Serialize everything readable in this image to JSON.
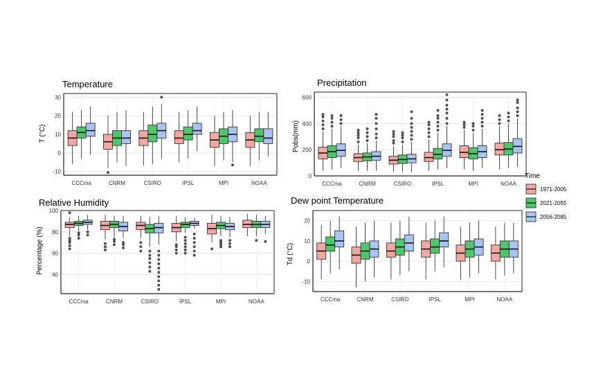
{
  "colors": {
    "1971-2005": "#F4A6A0",
    "2021-2055": "#4CC76A",
    "2056-2085": "#A8C4F2"
  },
  "legend": {
    "title": "Time",
    "items": [
      "1971-2005",
      "2021-2055",
      "2056-2085"
    ]
  },
  "chart_data": [
    {
      "type": "box",
      "title": "Temperature",
      "ylabel": "T (°C)",
      "ylim": [
        -12,
        32
      ],
      "yticks": [
        -10,
        0,
        10,
        20,
        30
      ],
      "categories": [
        "CCCma",
        "CNRM",
        "CSIRO",
        "IPSL",
        "MPI",
        "NOAA"
      ],
      "series": [
        {
          "name": "1971-2005",
          "boxes": [
            {
              "whislo": -6,
              "q1": 4,
              "med": 8,
              "q3": 12,
              "whishi": 22,
              "fliers": []
            },
            {
              "whislo": -8,
              "q1": 2,
              "med": 6,
              "q3": 10,
              "whishi": 20,
              "fliers": [
                -10.5
              ]
            },
            {
              "whislo": -7,
              "q1": 4,
              "med": 8,
              "q3": 12,
              "whishi": 22,
              "fliers": []
            },
            {
              "whislo": -5,
              "q1": 5,
              "med": 8,
              "q3": 12,
              "whishi": 22,
              "fliers": []
            },
            {
              "whislo": -7,
              "q1": 3,
              "med": 7,
              "q3": 11,
              "whishi": 20,
              "fliers": []
            },
            {
              "whislo": -7,
              "q1": 3,
              "med": 7,
              "q3": 11,
              "whishi": 20,
              "fliers": []
            }
          ]
        },
        {
          "name": "2021-2055",
          "boxes": [
            {
              "whislo": -3,
              "q1": 8,
              "med": 11,
              "q3": 14,
              "whishi": 23,
              "fliers": []
            },
            {
              "whislo": -5,
              "q1": 4,
              "med": 8,
              "q3": 12,
              "whishi": 22,
              "fliers": []
            },
            {
              "whislo": -6,
              "q1": 6,
              "med": 10,
              "q3": 15,
              "whishi": 25,
              "fliers": []
            },
            {
              "whislo": -3,
              "q1": 7,
              "med": 10,
              "q3": 14,
              "whishi": 23,
              "fliers": []
            },
            {
              "whislo": -4,
              "q1": 5,
              "med": 9,
              "q3": 13,
              "whishi": 22,
              "fliers": []
            },
            {
              "whislo": -4,
              "q1": 6,
              "med": 9,
              "q3": 13,
              "whishi": 22,
              "fliers": []
            }
          ]
        },
        {
          "name": "2056-2085",
          "boxes": [
            {
              "whislo": -1,
              "q1": 9,
              "med": 12,
              "q3": 16,
              "whishi": 25,
              "fliers": []
            },
            {
              "whislo": -7,
              "q1": 5,
              "med": 8,
              "q3": 12,
              "whishi": 23,
              "fliers": []
            },
            {
              "whislo": -3,
              "q1": 8,
              "med": 12,
              "q3": 16,
              "whishi": 26,
              "fliers": [
                30
              ]
            },
            {
              "whislo": 1,
              "q1": 10,
              "med": 12,
              "q3": 16,
              "whishi": 25,
              "fliers": []
            },
            {
              "whislo": -5,
              "q1": 6,
              "med": 10,
              "q3": 14,
              "whishi": 23,
              "fliers": [
                -6.5
              ]
            },
            {
              "whislo": -2,
              "q1": 5,
              "med": 8,
              "q3": 13,
              "whishi": 22,
              "fliers": []
            }
          ]
        }
      ]
    },
    {
      "type": "box",
      "title": "Precipitation",
      "ylabel": "Pobs(mm)",
      "ylim": [
        0,
        640
      ],
      "yticks": [
        0,
        200,
        400,
        600
      ],
      "categories": [
        "CCCma",
        "CNRM",
        "CSIRO",
        "IPSL",
        "MPI",
        "NOAA"
      ],
      "series": [
        {
          "name": "1971-2005",
          "boxes": [
            {
              "whislo": 40,
              "q1": 130,
              "med": 175,
              "q3": 220,
              "whishi": 340,
              "fliers": [
                360,
                390,
                420,
                450,
                470
              ]
            },
            {
              "whislo": 40,
              "q1": 110,
              "med": 140,
              "q3": 170,
              "whishi": 240,
              "fliers": [
                260,
                290,
                310,
                330,
                350
              ]
            },
            {
              "whislo": 30,
              "q1": 90,
              "med": 120,
              "q3": 150,
              "whishi": 230,
              "fliers": [
                250,
                270,
                300,
                320,
                340
              ]
            },
            {
              "whislo": 40,
              "q1": 110,
              "med": 140,
              "q3": 180,
              "whishi": 280,
              "fliers": [
                300,
                330,
                360,
                390,
                410
              ]
            },
            {
              "whislo": 50,
              "q1": 140,
              "med": 180,
              "q3": 230,
              "whishi": 350,
              "fliers": [
                370,
                390,
                410
              ]
            },
            {
              "whislo": 50,
              "q1": 160,
              "med": 200,
              "q3": 250,
              "whishi": 380,
              "fliers": [
                400,
                430,
                460
              ]
            }
          ]
        },
        {
          "name": "2021-2055",
          "boxes": [
            {
              "whislo": 50,
              "q1": 140,
              "med": 185,
              "q3": 230,
              "whishi": 360,
              "fliers": [
                380,
                410,
                440,
                460
              ]
            },
            {
              "whislo": 40,
              "q1": 115,
              "med": 145,
              "q3": 175,
              "whishi": 250,
              "fliers": [
                270,
                300,
                330,
                360
              ]
            },
            {
              "whislo": 30,
              "q1": 95,
              "med": 125,
              "q3": 160,
              "whishi": 240,
              "fliers": [
                260,
                290,
                310,
                330
              ]
            },
            {
              "whislo": 50,
              "q1": 130,
              "med": 165,
              "q3": 210,
              "whishi": 330,
              "fliers": [
                350,
                380,
                410,
                440,
                460,
                500
              ]
            },
            {
              "whislo": 40,
              "q1": 130,
              "med": 170,
              "q3": 215,
              "whishi": 330,
              "fliers": [
                350,
                380,
                400
              ]
            },
            {
              "whislo": 60,
              "q1": 160,
              "med": 205,
              "q3": 255,
              "whishi": 400,
              "fliers": [
                420,
                450,
                480
              ]
            }
          ]
        },
        {
          "name": "2056-2085",
          "boxes": [
            {
              "whislo": 60,
              "q1": 150,
              "med": 195,
              "q3": 245,
              "whishi": 380,
              "fliers": [
                400,
                430,
                460
              ]
            },
            {
              "whislo": 40,
              "q1": 120,
              "med": 150,
              "q3": 185,
              "whishi": 270,
              "fliers": [
                290,
                320,
                360,
                400,
                440,
                470
              ]
            },
            {
              "whislo": 30,
              "q1": 100,
              "med": 130,
              "q3": 165,
              "whishi": 260,
              "fliers": [
                280,
                310,
                340,
                370,
                400,
                440,
                490
              ]
            },
            {
              "whislo": 60,
              "q1": 150,
              "med": 195,
              "q3": 245,
              "whishi": 380,
              "fliers": [
                400,
                440,
                480,
                510,
                540,
                580,
                620
              ]
            },
            {
              "whislo": 60,
              "q1": 140,
              "med": 185,
              "q3": 230,
              "whishi": 360,
              "fliers": [
                380,
                410,
                440,
                470,
                500
              ]
            },
            {
              "whislo": 70,
              "q1": 175,
              "med": 225,
              "q3": 285,
              "whishi": 440,
              "fliers": [
                460,
                490,
                520,
                560,
                580
              ]
            }
          ]
        }
      ]
    },
    {
      "type": "box",
      "title": "Relative Humidity",
      "ylabel": "Percentage (%)",
      "ylim": [
        22,
        100
      ],
      "yticks": [
        40,
        60,
        80,
        100
      ],
      "categories": [
        "CCCma",
        "CNRM",
        "CSIRO",
        "IPSL",
        "MPI",
        "NOAA"
      ],
      "series": [
        {
          "name": "1971-2005",
          "boxes": [
            {
              "whislo": 76,
              "q1": 84,
              "med": 87,
              "q3": 89,
              "whishi": 94,
              "fliers": [
                64,
                67,
                70,
                72,
                74,
                98
              ]
            },
            {
              "whislo": 73,
              "q1": 82,
              "med": 86,
              "q3": 90,
              "whishi": 96,
              "fliers": [
                63,
                66,
                69
              ]
            },
            {
              "whislo": 74,
              "q1": 82,
              "med": 86,
              "q3": 89,
              "whishi": 95,
              "fliers": [
                62,
                66,
                70
              ]
            },
            {
              "whislo": 71,
              "q1": 80,
              "med": 84,
              "q3": 88,
              "whishi": 95,
              "fliers": [
                60,
                63,
                66,
                68
              ]
            },
            {
              "whislo": 70,
              "q1": 78,
              "med": 83,
              "q3": 88,
              "whishi": 96,
              "fliers": [
                64
              ]
            },
            {
              "whislo": 76,
              "q1": 84,
              "med": 87,
              "q3": 91,
              "whishi": 97,
              "fliers": []
            }
          ]
        },
        {
          "name": "2021-2055",
          "boxes": [
            {
              "whislo": 81,
              "q1": 86,
              "med": 88,
              "q3": 90,
              "whishi": 95,
              "fliers": [
                74,
                77,
                79
              ]
            },
            {
              "whislo": 75,
              "q1": 84,
              "med": 87,
              "q3": 90,
              "whishi": 95,
              "fliers": [
                68,
                71,
                73
              ]
            },
            {
              "whislo": 66,
              "q1": 79,
              "med": 83,
              "q3": 87,
              "whishi": 94,
              "fliers": [
                43,
                47,
                51,
                55,
                58,
                62
              ]
            },
            {
              "whislo": 79,
              "q1": 84,
              "med": 87,
              "q3": 89,
              "whishi": 94,
              "fliers": [
                60,
                63,
                66,
                69,
                72,
                75
              ]
            },
            {
              "whislo": 76,
              "q1": 83,
              "med": 86,
              "q3": 89,
              "whishi": 95,
              "fliers": [
                66,
                68,
                70,
                72
              ]
            },
            {
              "whislo": 76,
              "q1": 84,
              "med": 87,
              "q3": 90,
              "whishi": 96,
              "fliers": [
                72
              ]
            }
          ]
        },
        {
          "name": "2056-2085",
          "boxes": [
            {
              "whislo": 82,
              "q1": 87,
              "med": 89,
              "q3": 91,
              "whishi": 96,
              "fliers": [
                77,
                80
              ]
            },
            {
              "whislo": 74,
              "q1": 81,
              "med": 85,
              "q3": 89,
              "whishi": 95,
              "fliers": [
                65,
                68,
                70
              ]
            },
            {
              "whislo": 68,
              "q1": 79,
              "med": 84,
              "q3": 88,
              "whishi": 95,
              "fliers": [
                26,
                30,
                34,
                38,
                42,
                46,
                50,
                54,
                58,
                62
              ]
            },
            {
              "whislo": 83,
              "q1": 86,
              "med": 88,
              "q3": 90,
              "whishi": 93,
              "fliers": [
                58,
                62,
                66,
                70,
                74,
                78
              ]
            },
            {
              "whislo": 75,
              "q1": 82,
              "med": 85,
              "q3": 88,
              "whishi": 94,
              "fliers": [
                66,
                69,
                72
              ]
            },
            {
              "whislo": 78,
              "q1": 84,
              "med": 87,
              "q3": 90,
              "whishi": 95,
              "fliers": [
                71
              ]
            }
          ]
        }
      ]
    },
    {
      "type": "box",
      "title": "Dew point Temperature",
      "ylabel": "Td (°C)",
      "ylim": [
        -15,
        25
      ],
      "yticks": [
        -10,
        0,
        10,
        20
      ],
      "categories": [
        "CCCma",
        "CNRM",
        "CSIRO",
        "IPSL",
        "MPI",
        "NOAA"
      ],
      "series": [
        {
          "name": "1971-2005",
          "boxes": [
            {
              "whislo": -9,
              "q1": 1,
              "med": 5,
              "q3": 9,
              "whishi": 18,
              "fliers": []
            },
            {
              "whislo": -13,
              "q1": -1,
              "med": 3,
              "q3": 7,
              "whishi": 17,
              "fliers": []
            },
            {
              "whislo": -9,
              "q1": 2,
              "med": 5,
              "q3": 9,
              "whishi": 19,
              "fliers": []
            },
            {
              "whislo": -9,
              "q1": 2,
              "med": 6,
              "q3": 10,
              "whishi": 19,
              "fliers": []
            },
            {
              "whislo": -9,
              "q1": 0,
              "med": 4,
              "q3": 8,
              "whishi": 17,
              "fliers": []
            },
            {
              "whislo": -9,
              "q1": 0,
              "med": 4,
              "q3": 8,
              "whishi": 17,
              "fliers": []
            }
          ]
        },
        {
          "name": "2021-2055",
          "boxes": [
            {
              "whislo": -6,
              "q1": 5,
              "med": 8,
              "q3": 12,
              "whishi": 20,
              "fliers": []
            },
            {
              "whislo": -10,
              "q1": 1,
              "med": 5,
              "q3": 9,
              "whishi": 19,
              "fliers": []
            },
            {
              "whislo": -7,
              "q1": 3,
              "med": 7,
              "q3": 11,
              "whishi": 20,
              "fliers": []
            },
            {
              "whislo": -5,
              "q1": 4,
              "med": 7,
              "q3": 11,
              "whishi": 20,
              "fliers": []
            },
            {
              "whislo": -8,
              "q1": 2,
              "med": 6,
              "q3": 10,
              "whishi": 19,
              "fliers": []
            },
            {
              "whislo": -7,
              "q1": 2,
              "med": 6,
              "q3": 10,
              "whishi": 19,
              "fliers": []
            }
          ]
        },
        {
          "name": "2056-2085",
          "boxes": [
            {
              "whislo": -4,
              "q1": 7,
              "med": 10,
              "q3": 15,
              "whishi": 22,
              "fliers": []
            },
            {
              "whislo": -8,
              "q1": 2,
              "med": 6,
              "q3": 10,
              "whishi": 20,
              "fliers": []
            },
            {
              "whislo": -5,
              "q1": 5,
              "med": 9,
              "q3": 13,
              "whishi": 22,
              "fliers": []
            },
            {
              "whislo": -3,
              "q1": 7,
              "med": 10,
              "q3": 14,
              "whishi": 22,
              "fliers": []
            },
            {
              "whislo": -6,
              "q1": 3,
              "med": 7,
              "q3": 11,
              "whishi": 20,
              "fliers": []
            },
            {
              "whislo": -6,
              "q1": 2,
              "med": 6,
              "q3": 10,
              "whishi": 19,
              "fliers": []
            }
          ]
        }
      ]
    }
  ]
}
